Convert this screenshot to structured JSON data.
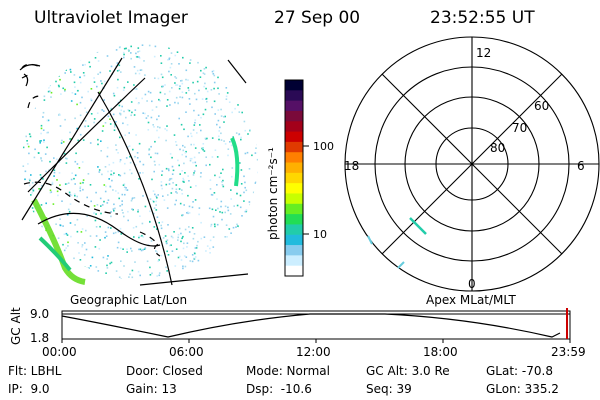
{
  "header": {
    "instrument": "Ultraviolet Imager",
    "date": "27 Sep 00",
    "time": "23:52:55 UT"
  },
  "left_panel": {
    "label": "Geographic Lat/Lon"
  },
  "colorbar": {
    "unit_label": "photon cm⁻²s⁻¹",
    "ticks": [
      "100",
      "10"
    ],
    "colors": [
      "#000033",
      "#2a0a55",
      "#551066",
      "#7a0a3a",
      "#a3001a",
      "#cc0000",
      "#e03a00",
      "#ff7f00",
      "#ffb000",
      "#ffd700",
      "#ffff00",
      "#c8ff00",
      "#66ee22",
      "#22dd55",
      "#22ccaa",
      "#22bbdd",
      "#88ccee",
      "#cceeff",
      "#ffffff"
    ]
  },
  "polar": {
    "label": "Apex MLat/MLT",
    "mlt_labels": [
      "12",
      "18",
      "6",
      "0"
    ],
    "lat_labels": [
      "60",
      "70",
      "80"
    ]
  },
  "orbit_plot": {
    "ylabel": "GC Alt",
    "y_ticks": [
      "9.0",
      "1.8"
    ],
    "x_ticks": [
      "00:00",
      "06:00",
      "12:00",
      "18:00",
      "23:59"
    ]
  },
  "info": {
    "row1": [
      "Flt: LBHL",
      "Door: Closed",
      "Mode: Normal",
      "GC Alt: 3.0 Re",
      "GLat: -70.8"
    ],
    "row2": [
      "IP:  9.0",
      "Gain: 13",
      "Dsp:  -10.6",
      "Seq: 39",
      "GLon: 335.2"
    ]
  }
}
